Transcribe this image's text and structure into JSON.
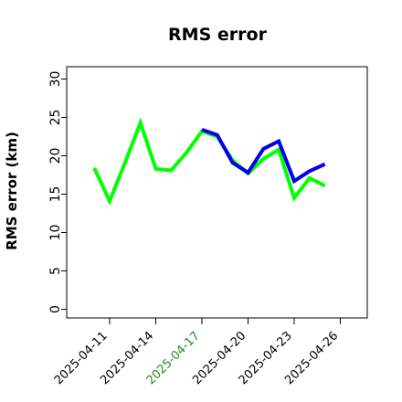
{
  "chart_data": {
    "type": "line",
    "title": "RMS error",
    "xlabel": "",
    "ylabel": "RMS error (km)",
    "ylim": [
      0,
      30
    ],
    "yticks": [
      "0",
      "5",
      "10",
      "15",
      "20",
      "25",
      "30"
    ],
    "xticks": [
      "2025-04-11",
      "2025-04-14",
      "2025-04-17",
      "2025-04-20",
      "2025-04-23",
      "2025-04-26"
    ],
    "highlighted_xtick": "2025-04-17",
    "highlight_color": "#228B22",
    "grid": false,
    "legend": "none",
    "series": [
      {
        "color": "#00ff00",
        "x": [
          "2025-04-10",
          "2025-04-11",
          "2025-04-12",
          "2025-04-13",
          "2025-04-14",
          "2025-04-15",
          "2025-04-16",
          "2025-04-17",
          "2025-04-18",
          "2025-04-19",
          "2025-04-20",
          "2025-04-21",
          "2025-04-22",
          "2025-04-23",
          "2025-04-24",
          "2025-04-25"
        ],
        "values": [
          18.4,
          14.1,
          19.1,
          24.3,
          18.3,
          18.1,
          20.4,
          23.2,
          22.5,
          19.4,
          17.7,
          19.6,
          20.8,
          14.5,
          17.1,
          16.1
        ]
      },
      {
        "color": "#0000ee",
        "x": [
          "2025-04-17",
          "2025-04-18",
          "2025-04-19",
          "2025-04-20",
          "2025-04-21",
          "2025-04-22",
          "2025-04-23",
          "2025-04-24",
          "2025-04-25"
        ],
        "values": [
          23.4,
          22.7,
          19.1,
          17.8,
          20.9,
          21.9,
          16.7,
          18.0,
          18.9
        ]
      }
    ]
  }
}
